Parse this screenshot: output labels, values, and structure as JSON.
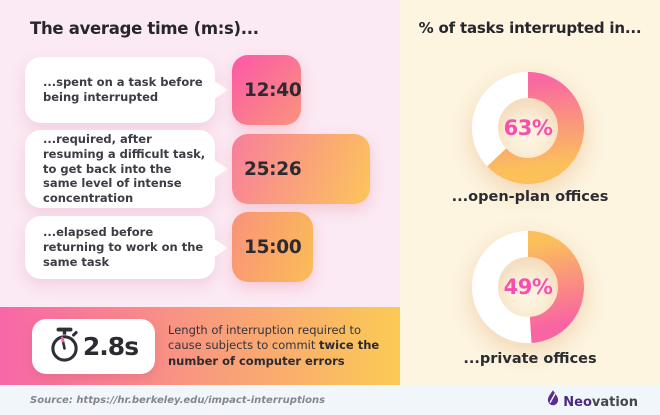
{
  "left_panel": {
    "title": "The average time (m:s)...",
    "items": [
      {
        "label": "...spent on a task before being interrupted",
        "value": "12:40"
      },
      {
        "label": "...required, after resuming a difficult task, to get back into the same level of intense concentration",
        "value": "25:26"
      },
      {
        "label": "...elapsed before returning to work on the same task",
        "value": "15:00"
      }
    ],
    "callout": {
      "value": "2.8s",
      "text_normal": "Length of interruption required to cause subjects to commit ",
      "text_bold": "twice the number of computer errors"
    }
  },
  "right_panel": {
    "title": "% of tasks interrupted in...",
    "donuts": [
      {
        "percent": 63,
        "label_value": "63%",
        "label": "...open-plan offices"
      },
      {
        "percent": 49,
        "label_value": "49%",
        "label": "...private offices"
      }
    ]
  },
  "footer": {
    "source": "Source: https://hr.berkeley.edu/impact-interruptions",
    "brand_bold": "Neo",
    "brand_rest": "vation"
  },
  "icons": {
    "stopwatch": "stopwatch-icon",
    "brand_flame": "neovation-flame-icon"
  },
  "colors": {
    "left_background": "#FBE9F3",
    "right_background": "#FDF5E0",
    "footer_background": "#F1F6FA",
    "gradient_pink": "#F767A7",
    "gradient_yellow": "#FBCB55",
    "percent_text_pink": "#F84FAE",
    "dark_text": "#2B2B31",
    "brand_purple": "#4A2B82"
  },
  "chart_data": [
    {
      "type": "bar",
      "orientation": "horizontal",
      "title": "The average time (m:s)...",
      "categories": [
        "...spent on a task before being interrupted",
        "...required, after resuming a difficult task, to get back into the same level of intense concentration",
        "...elapsed before returning to work on the same task"
      ],
      "values": [
        "12:40",
        "25:26",
        "15:00"
      ],
      "values_seconds": [
        760,
        1526,
        900
      ]
    },
    {
      "type": "pie",
      "style": "donut",
      "title": "% of tasks interrupted in...",
      "categories": [
        "...open-plan offices",
        "...private offices"
      ],
      "values": [
        63,
        49
      ],
      "unit": "%",
      "start_angle": "top",
      "direction": "clockwise"
    }
  ]
}
